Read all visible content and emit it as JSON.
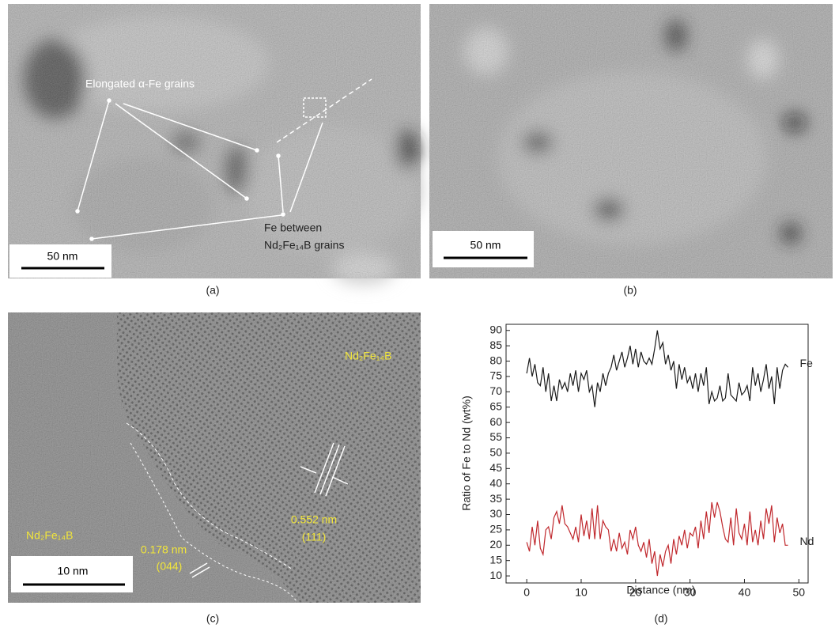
{
  "panels": {
    "a": {
      "caption": "(a)",
      "scale_bar": "50 nm",
      "labels": [
        "Elongated α-Fe grains",
        "Fe between",
        "Nd₂Fe₁₄B grains"
      ]
    },
    "b": {
      "caption": "(b)",
      "scale_bar": "50 nm"
    },
    "c": {
      "caption": "(c)",
      "scale_bar": "10 nm",
      "labels": [
        "Nd₂Fe₁₄B",
        "Nd₂Fe₁₄B",
        "0.552 nm",
        "(111)",
        "0.178 nm",
        "(044)"
      ]
    },
    "d": {
      "caption": "(d)"
    }
  },
  "chart_data": {
    "type": "line",
    "x_label": "Distance (nm)",
    "y_label": "Ratio of Fe to Nd (wt%)",
    "xlim": [
      -3.8,
      51.7
    ],
    "ylim": [
      7.7,
      92
    ],
    "xticks": [
      0,
      10,
      20,
      30,
      40,
      50
    ],
    "yticks": [
      10,
      15,
      20,
      25,
      30,
      35,
      40,
      45,
      50,
      55,
      60,
      65,
      70,
      75,
      80,
      85,
      90
    ],
    "x": [
      0,
      0.5,
      1,
      1.5,
      2,
      2.5,
      3,
      3.5,
      4,
      4.5,
      5,
      5.5,
      6,
      6.5,
      7,
      7.5,
      8,
      8.5,
      9,
      9.5,
      10,
      10.5,
      11,
      11.5,
      12,
      12.5,
      13,
      13.5,
      14,
      14.5,
      15,
      15.5,
      16,
      16.5,
      17,
      17.5,
      18,
      18.5,
      19,
      19.5,
      20,
      20.5,
      21,
      21.5,
      22,
      22.5,
      23,
      23.5,
      24,
      24.5,
      25,
      25.5,
      26,
      26.5,
      27,
      27.5,
      28,
      28.5,
      29,
      29.5,
      30,
      30.5,
      31,
      31.5,
      32,
      32.5,
      33,
      33.5,
      34,
      34.5,
      35,
      35.5,
      36,
      36.5,
      37,
      37.5,
      38,
      38.5,
      39,
      39.5,
      40,
      40.5,
      41,
      41.5,
      42,
      42.5,
      43,
      43.5,
      44,
      44.5,
      45,
      45.5,
      46,
      46.5,
      47,
      47.5,
      48
    ],
    "series": [
      {
        "name": "Fe",
        "color": "#1a1a1a",
        "values": [
          76,
          81,
          75,
          79,
          73,
          72,
          78,
          70,
          76,
          67,
          72,
          67,
          74,
          71,
          73,
          70,
          76,
          72,
          77,
          70,
          76,
          74,
          77,
          70,
          72,
          65,
          73,
          70,
          76,
          72,
          76,
          78,
          82,
          77,
          80,
          83,
          78,
          81,
          85,
          79,
          84,
          78,
          83,
          80,
          79,
          81,
          79,
          84,
          90,
          84,
          86,
          79,
          82,
          77,
          80,
          71,
          79,
          74,
          78,
          73,
          75,
          71,
          76,
          70,
          76,
          72,
          78,
          66,
          70,
          67,
          68,
          72,
          67,
          68,
          76,
          69,
          68,
          67,
          73,
          69,
          70,
          72,
          67,
          78,
          72,
          76,
          70,
          74,
          79,
          71,
          75,
          66,
          78,
          71,
          77,
          79,
          78
        ]
      },
      {
        "name": "Nd",
        "color": "#c0282d",
        "values": [
          21,
          18,
          26,
          20,
          28,
          19,
          17,
          25,
          26,
          22,
          29,
          31,
          27,
          33,
          27,
          26,
          24,
          22,
          26,
          21,
          30,
          23,
          28,
          22,
          32,
          22,
          33,
          22,
          28,
          26,
          25,
          18,
          22,
          18,
          24,
          19,
          21,
          17,
          25,
          22,
          26,
          20,
          18,
          21,
          16,
          22,
          14,
          18,
          10,
          17,
          13,
          18,
          20,
          14,
          22,
          17,
          23,
          20,
          25,
          19,
          24,
          23,
          26,
          19,
          28,
          22,
          31,
          24,
          34,
          29,
          34,
          31,
          26,
          22,
          21,
          29,
          20,
          32,
          24,
          22,
          27,
          20,
          31,
          21,
          25,
          20,
          28,
          22,
          32,
          27,
          33,
          21,
          29,
          24,
          27,
          20,
          20
        ]
      }
    ]
  }
}
